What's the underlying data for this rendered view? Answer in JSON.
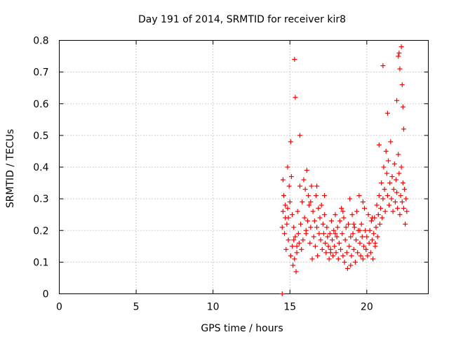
{
  "chart_data": {
    "type": "scatter",
    "title": "Day 191 of 2014, SRMTID for receiver kir8",
    "xlabel": "GPS time / hours",
    "ylabel": "SRMTID / TECUs",
    "xlim": [
      0,
      24
    ],
    "ylim": [
      0,
      0.8
    ],
    "grid": true,
    "marker": "+",
    "color": "#ff0000",
    "x_ticks": [
      {
        "value": 0,
        "label": "0"
      },
      {
        "value": 5,
        "label": "5"
      },
      {
        "value": 10,
        "label": "10"
      },
      {
        "value": 15,
        "label": "15"
      },
      {
        "value": 20,
        "label": "20"
      }
    ],
    "y_ticks": [
      {
        "value": 0,
        "label": "0"
      },
      {
        "value": 0.1,
        "label": "0.1"
      },
      {
        "value": 0.2,
        "label": "0.2"
      },
      {
        "value": 0.3,
        "label": "0.3"
      },
      {
        "value": 0.4,
        "label": "0.4"
      },
      {
        "value": 0.5,
        "label": "0.5"
      },
      {
        "value": 0.6,
        "label": "0.6"
      },
      {
        "value": 0.7,
        "label": "0.7"
      },
      {
        "value": 0.8,
        "label": "0.8"
      }
    ],
    "series": [
      {
        "name": "SRMTID",
        "x": [
          14.5,
          14.55,
          14.6,
          14.65,
          14.7,
          14.75,
          14.8,
          14.85,
          14.9,
          14.95,
          15.0,
          15.05,
          15.1,
          15.15,
          15.2,
          15.25,
          15.3,
          15.35,
          15.4,
          15.45,
          15.5,
          15.55,
          15.6,
          15.65,
          15.7,
          15.75,
          15.8,
          15.85,
          15.9,
          15.95,
          16.0,
          16.05,
          16.1,
          16.15,
          16.2,
          16.25,
          16.3,
          16.35,
          16.4,
          16.45,
          16.5,
          16.55,
          16.6,
          16.65,
          16.7,
          16.75,
          16.8,
          16.85,
          16.9,
          16.95,
          17.0,
          17.05,
          17.1,
          17.15,
          17.2,
          17.25,
          17.3,
          17.35,
          17.4,
          17.45,
          17.5,
          17.55,
          17.6,
          17.65,
          17.7,
          17.75,
          17.8,
          17.85,
          17.9,
          17.95,
          18.0,
          18.05,
          18.1,
          18.15,
          18.2,
          18.25,
          18.3,
          18.35,
          18.4,
          18.45,
          18.5,
          18.55,
          18.6,
          18.65,
          18.7,
          18.75,
          18.8,
          18.85,
          18.9,
          18.95,
          19.0,
          19.05,
          19.1,
          19.15,
          19.2,
          19.25,
          19.3,
          19.35,
          19.4,
          19.45,
          19.5,
          19.55,
          19.6,
          19.65,
          19.7,
          19.75,
          19.8,
          19.85,
          19.9,
          19.95,
          20.0,
          20.05,
          20.1,
          20.15,
          20.2,
          20.25,
          20.3,
          20.35,
          20.4,
          20.45,
          20.5,
          20.55,
          20.6,
          20.65,
          20.7,
          20.75,
          20.8,
          20.85,
          20.9,
          20.95,
          21.0,
          21.05,
          21.1,
          21.15,
          21.2,
          21.25,
          21.3,
          21.35,
          21.4,
          21.45,
          21.5,
          21.55,
          21.6,
          21.65,
          21.7,
          21.75,
          21.8,
          21.85,
          21.9,
          21.95,
          22.0,
          22.05,
          22.1,
          22.15,
          22.2,
          22.25,
          22.3,
          22.35,
          22.4,
          22.45,
          22.5,
          22.55,
          22.6,
          15.05,
          15.3,
          15.35,
          15.65,
          21.05,
          21.35,
          21.95,
          22.05,
          22.1,
          22.15,
          22.25,
          22.3,
          22.35,
          22.4,
          14.55,
          15.15,
          14.85,
          14.9,
          15.45,
          16.35,
          16.75,
          17.25,
          17.95,
          18.45,
          19.15,
          19.75,
          20.35,
          20.8,
          20.55,
          19.55,
          18.95,
          17.65,
          16.05,
          15.25,
          14.7,
          14.5
        ],
        "y": [
          0.21,
          0.26,
          0.31,
          0.19,
          0.24,
          0.14,
          0.22,
          0.27,
          0.17,
          0.34,
          0.29,
          0.12,
          0.37,
          0.15,
          0.09,
          0.21,
          0.11,
          0.18,
          0.07,
          0.13,
          0.26,
          0.19,
          0.16,
          0.34,
          0.22,
          0.14,
          0.29,
          0.17,
          0.36,
          0.24,
          0.33,
          0.19,
          0.39,
          0.23,
          0.31,
          0.28,
          0.16,
          0.21,
          0.34,
          0.11,
          0.26,
          0.18,
          0.23,
          0.15,
          0.31,
          0.21,
          0.12,
          0.27,
          0.19,
          0.24,
          0.17,
          0.28,
          0.14,
          0.22,
          0.19,
          0.25,
          0.16,
          0.13,
          0.21,
          0.18,
          0.15,
          0.11,
          0.19,
          0.14,
          0.23,
          0.17,
          0.12,
          0.2,
          0.15,
          0.25,
          0.13,
          0.18,
          0.21,
          0.11,
          0.16,
          0.23,
          0.14,
          0.27,
          0.19,
          0.12,
          0.24,
          0.1,
          0.17,
          0.21,
          0.13,
          0.08,
          0.22,
          0.15,
          0.3,
          0.18,
          0.12,
          0.25,
          0.19,
          0.14,
          0.21,
          0.1,
          0.17,
          0.26,
          0.13,
          0.2,
          0.31,
          0.16,
          0.12,
          0.22,
          0.18,
          0.11,
          0.15,
          0.27,
          0.2,
          0.14,
          0.18,
          0.12,
          0.25,
          0.16,
          0.2,
          0.13,
          0.23,
          0.17,
          0.11,
          0.19,
          0.24,
          0.15,
          0.21,
          0.28,
          0.18,
          0.25,
          0.31,
          0.22,
          0.27,
          0.35,
          0.24,
          0.3,
          0.4,
          0.33,
          0.26,
          0.45,
          0.38,
          0.31,
          0.42,
          0.28,
          0.35,
          0.48,
          0.3,
          0.37,
          0.26,
          0.33,
          0.41,
          0.29,
          0.36,
          0.32,
          0.27,
          0.44,
          0.38,
          0.25,
          0.31,
          0.4,
          0.29,
          0.35,
          0.27,
          0.33,
          0.22,
          0.3,
          0.26,
          0.48,
          0.74,
          0.62,
          0.5,
          0.72,
          0.57,
          0.61,
          0.75,
          0.76,
          0.71,
          0.78,
          0.66,
          0.59,
          0.52,
          0.36,
          0.25,
          0.4,
          0.24,
          0.15,
          0.29,
          0.34,
          0.31,
          0.19,
          0.26,
          0.22,
          0.29,
          0.24,
          0.47,
          0.16,
          0.2,
          0.09,
          0.13,
          0.2,
          0.17,
          0.28,
          0.0
        ]
      }
    ]
  }
}
